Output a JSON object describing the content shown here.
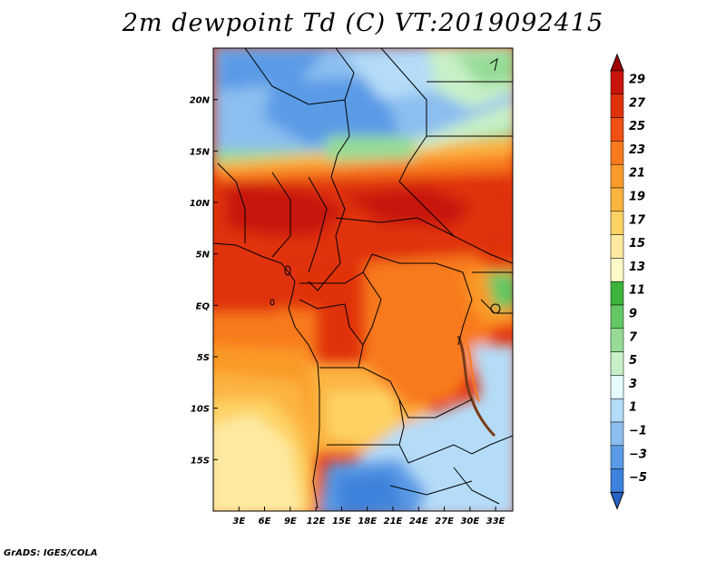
{
  "title": "2m dewpoint Td (C) VT:2019092415",
  "footer": "GrADS: IGES/COLA",
  "map": {
    "lon_range": [
      0,
      35
    ],
    "lat_range": [
      -20,
      25
    ],
    "lat_ticks": [
      "20N",
      "15N",
      "10N",
      "5N",
      "EQ",
      "5S",
      "10S",
      "15S"
    ],
    "lat_tick_values": [
      20,
      15,
      10,
      5,
      0,
      -5,
      -10,
      -15
    ],
    "lon_ticks": [
      "3E",
      "6E",
      "9E",
      "12E",
      "15E",
      "18E",
      "21E",
      "24E",
      "27E",
      "30E",
      "33E"
    ],
    "lon_tick_values": [
      3,
      6,
      9,
      12,
      15,
      18,
      21,
      24,
      27,
      30,
      33
    ]
  },
  "colorbar": {
    "labels": [
      "29",
      "27",
      "25",
      "23",
      "21",
      "19",
      "17",
      "15",
      "13",
      "11",
      "9",
      "7",
      "5",
      "3",
      "1",
      "−1",
      "−3",
      "−5"
    ],
    "colors": [
      "#a00000",
      "#c8140a",
      "#e0320a",
      "#f05014",
      "#f87a1e",
      "#fa9a28",
      "#fcb440",
      "#fdd264",
      "#fdeaa0",
      "#fcf8c8",
      "#3cb43c",
      "#64c864",
      "#96dc96",
      "#c8f0c8",
      "#e6faff",
      "#b4dcf8",
      "#8cbef0",
      "#5a9be6",
      "#3c82dc",
      "#2864c8"
    ]
  }
}
